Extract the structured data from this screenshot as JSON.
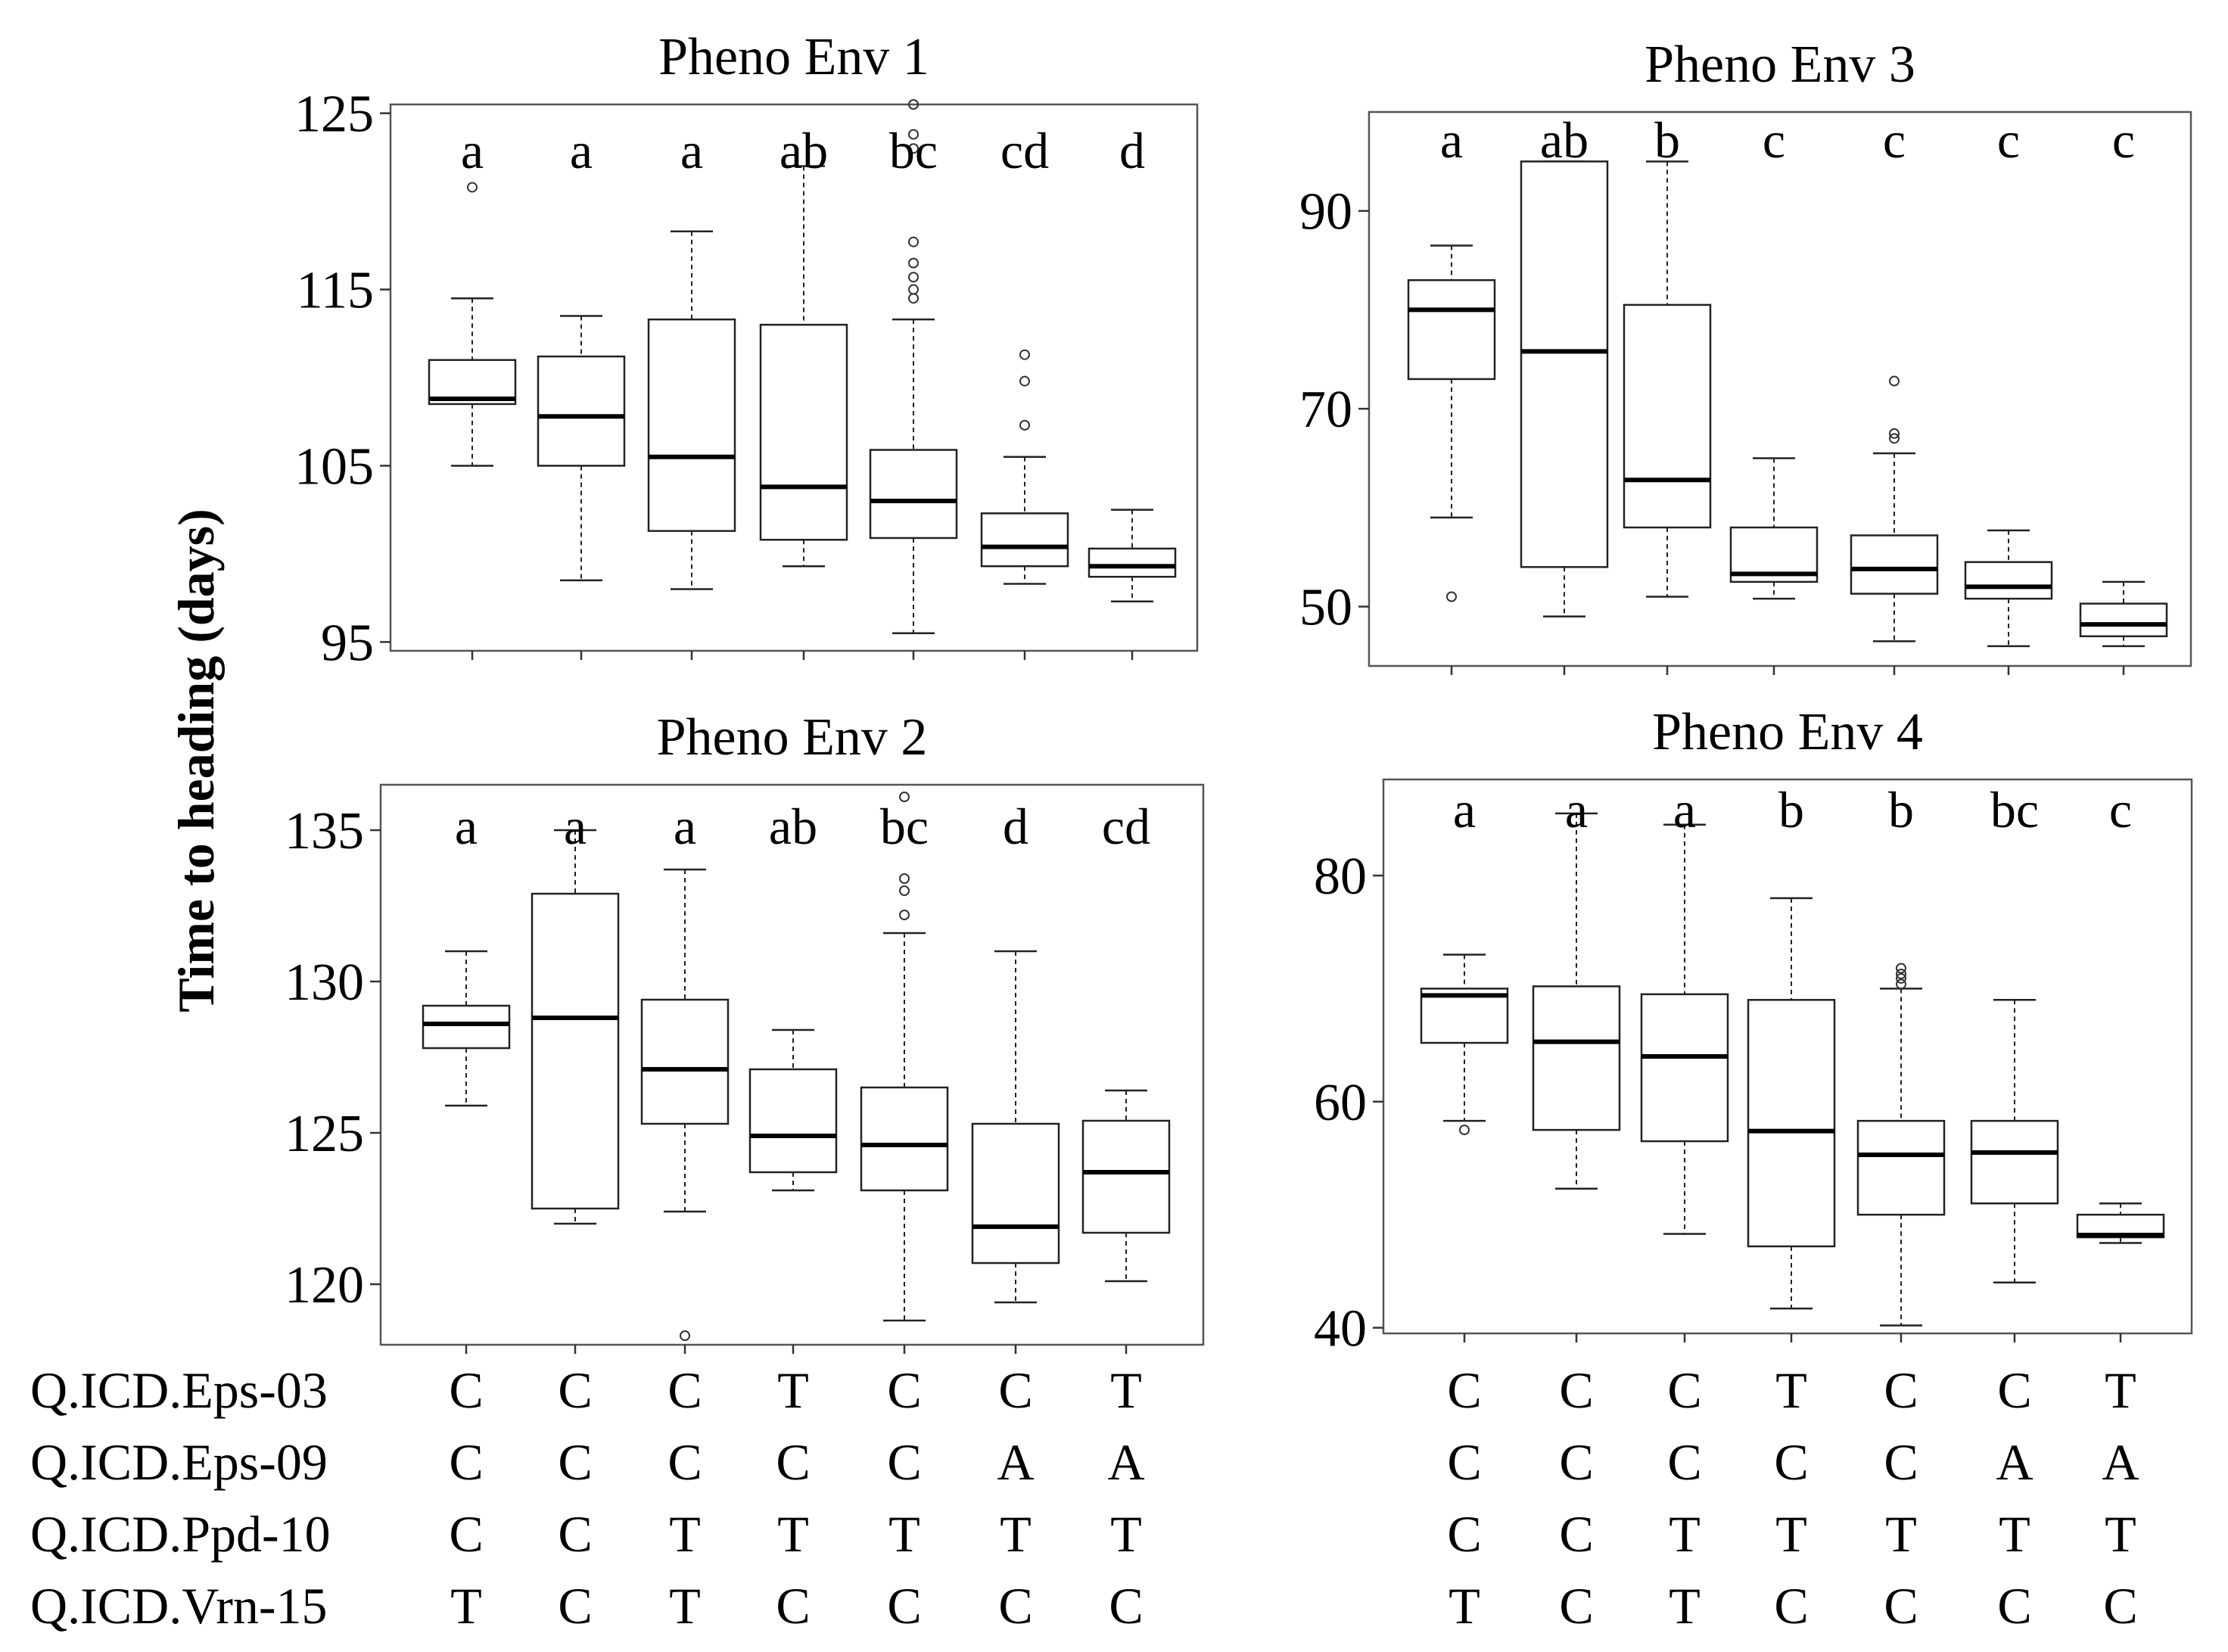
{
  "figure": {
    "ylabel": "Time to heading (days)",
    "marker_labels": [
      "Q.ICD.Eps-03",
      "Q.ICD.Eps-09",
      "Q.ICD.Ppd-10",
      "Q.ICD.Vrn-15"
    ],
    "genotypes": [
      [
        "C",
        "C",
        "C",
        "T",
        "C",
        "C",
        "T"
      ],
      [
        "C",
        "C",
        "C",
        "C",
        "C",
        "A",
        "A"
      ],
      [
        "C",
        "C",
        "T",
        "T",
        "T",
        "T",
        "T"
      ],
      [
        "T",
        "C",
        "T",
        "C",
        "C",
        "C",
        "C"
      ]
    ]
  },
  "chart_data": [
    {
      "type": "box",
      "title": "Pheno Env 1",
      "ylabel": "Time to heading (days)",
      "yticks": [
        95,
        105,
        115,
        125
      ],
      "ylim": [
        94.5,
        125.5
      ],
      "groups": [
        "1",
        "2",
        "3",
        "4",
        "5",
        "6",
        "7"
      ],
      "letters": [
        "a",
        "a",
        "a",
        "ab",
        "bc",
        "cd",
        "d"
      ],
      "boxes": [
        {
          "whislo": 105.0,
          "q1": 108.5,
          "med": 108.8,
          "q3": 111.0,
          "whishi": 114.5,
          "fliers": [
            120.8
          ]
        },
        {
          "whislo": 98.5,
          "q1": 105.0,
          "med": 107.8,
          "q3": 111.2,
          "whishi": 113.5,
          "fliers": []
        },
        {
          "whislo": 98.0,
          "q1": 101.3,
          "med": 105.5,
          "q3": 113.3,
          "whishi": 118.3,
          "fliers": []
        },
        {
          "whislo": 99.3,
          "q1": 100.8,
          "med": 103.8,
          "q3": 113.0,
          "whishi": 122.0,
          "fliers": []
        },
        {
          "whislo": 95.5,
          "q1": 100.9,
          "med": 103.0,
          "q3": 105.9,
          "whishi": 113.3,
          "fliers": [
            114.5,
            115.0,
            115.7,
            116.5,
            117.7,
            123.0,
            123.8,
            125.5
          ]
        },
        {
          "whislo": 98.3,
          "q1": 99.3,
          "med": 100.4,
          "q3": 102.3,
          "whishi": 105.5,
          "fliers": [
            107.3,
            109.8,
            111.3
          ]
        },
        {
          "whislo": 97.3,
          "q1": 98.7,
          "med": 99.3,
          "q3": 100.3,
          "whishi": 102.5,
          "fliers": []
        }
      ]
    },
    {
      "type": "box",
      "title": "Pheno Env 2",
      "ylabel": "Time to heading (days)",
      "yticks": [
        120,
        125,
        130,
        135
      ],
      "ylim": [
        118,
        136.5
      ],
      "groups": [
        "1",
        "2",
        "3",
        "4",
        "5",
        "6",
        "7"
      ],
      "letters": [
        "a",
        "a",
        "a",
        "ab",
        "bc",
        "d",
        "cd"
      ],
      "boxes": [
        {
          "whislo": 125.9,
          "q1": 127.8,
          "med": 128.6,
          "q3": 129.2,
          "whishi": 131.0,
          "fliers": []
        },
        {
          "whislo": 122.0,
          "q1": 122.5,
          "med": 128.8,
          "q3": 132.9,
          "whishi": 135.0,
          "fliers": []
        },
        {
          "whislo": 122.4,
          "q1": 125.3,
          "med": 127.1,
          "q3": 129.4,
          "whishi": 133.7,
          "fliers": [
            118.3
          ]
        },
        {
          "whislo": 123.1,
          "q1": 123.7,
          "med": 124.9,
          "q3": 127.1,
          "whishi": 128.4,
          "fliers": []
        },
        {
          "whislo": 118.8,
          "q1": 123.1,
          "med": 124.6,
          "q3": 126.5,
          "whishi": 131.6,
          "fliers": [
            132.2,
            133.0,
            133.4,
            136.1
          ]
        },
        {
          "whislo": 119.4,
          "q1": 120.7,
          "med": 121.9,
          "q3": 125.3,
          "whishi": 131.0,
          "fliers": []
        },
        {
          "whislo": 120.1,
          "q1": 121.7,
          "med": 123.7,
          "q3": 125.4,
          "whishi": 126.4,
          "fliers": []
        }
      ]
    },
    {
      "type": "box",
      "title": "Pheno Env 3",
      "ylabel": "Time to heading (days)",
      "yticks": [
        50,
        70,
        90
      ],
      "ylim": [
        44,
        100
      ],
      "groups": [
        "1",
        "2",
        "3",
        "4",
        "5",
        "6",
        "7"
      ],
      "letters": [
        "a",
        "ab",
        "b",
        "c",
        "c",
        "c",
        "c"
      ],
      "boxes": [
        {
          "whislo": 59.0,
          "q1": 73.0,
          "med": 80.0,
          "q3": 83.0,
          "whishi": 86.5,
          "fliers": [
            51.0
          ]
        },
        {
          "whislo": 49.0,
          "q1": 54.0,
          "med": 75.8,
          "q3": 95.0,
          "whishi": 95.0,
          "fliers": []
        },
        {
          "whislo": 51.0,
          "q1": 58.0,
          "med": 62.8,
          "q3": 80.5,
          "whishi": 95.0,
          "fliers": []
        },
        {
          "whislo": 50.8,
          "q1": 52.5,
          "med": 53.3,
          "q3": 58.0,
          "whishi": 65.0,
          "fliers": []
        },
        {
          "whislo": 46.5,
          "q1": 51.3,
          "med": 53.8,
          "q3": 57.2,
          "whishi": 65.5,
          "fliers": [
            67.0,
            67.5,
            72.8
          ]
        },
        {
          "whislo": 46.0,
          "q1": 50.8,
          "med": 52.0,
          "q3": 54.5,
          "whishi": 57.7,
          "fliers": []
        },
        {
          "whislo": 46.0,
          "q1": 47.0,
          "med": 48.2,
          "q3": 50.3,
          "whishi": 52.5,
          "fliers": []
        }
      ]
    },
    {
      "type": "box",
      "title": "Pheno Env 4",
      "ylabel": "Time to heading (days)",
      "yticks": [
        40,
        60,
        80
      ],
      "ylim": [
        39.5,
        88.5
      ],
      "groups": [
        "1",
        "2",
        "3",
        "4",
        "5",
        "6",
        "7"
      ],
      "letters": [
        "a",
        "a",
        "a",
        "b",
        "b",
        "bc",
        "c"
      ],
      "boxes": [
        {
          "whislo": 58.3,
          "q1": 65.2,
          "med": 69.4,
          "q3": 70.0,
          "whishi": 73.0,
          "fliers": [
            57.5
          ]
        },
        {
          "whislo": 52.3,
          "q1": 57.5,
          "med": 65.3,
          "q3": 70.2,
          "whishi": 85.5,
          "fliers": []
        },
        {
          "whislo": 48.3,
          "q1": 56.5,
          "med": 64.0,
          "q3": 69.5,
          "whishi": 84.5,
          "fliers": []
        },
        {
          "whislo": 41.7,
          "q1": 47.2,
          "med": 57.4,
          "q3": 69.0,
          "whishi": 78.0,
          "fliers": []
        },
        {
          "whislo": 40.2,
          "q1": 50.0,
          "med": 55.3,
          "q3": 58.3,
          "whishi": 70.0,
          "fliers": [
            70.4,
            70.9,
            71.3,
            71.8
          ]
        },
        {
          "whislo": 44.0,
          "q1": 51.0,
          "med": 55.5,
          "q3": 58.3,
          "whishi": 69.0,
          "fliers": []
        },
        {
          "whislo": 47.5,
          "q1": 48.0,
          "med": 48.2,
          "q3": 50.0,
          "whishi": 51.0,
          "fliers": []
        }
      ]
    }
  ]
}
